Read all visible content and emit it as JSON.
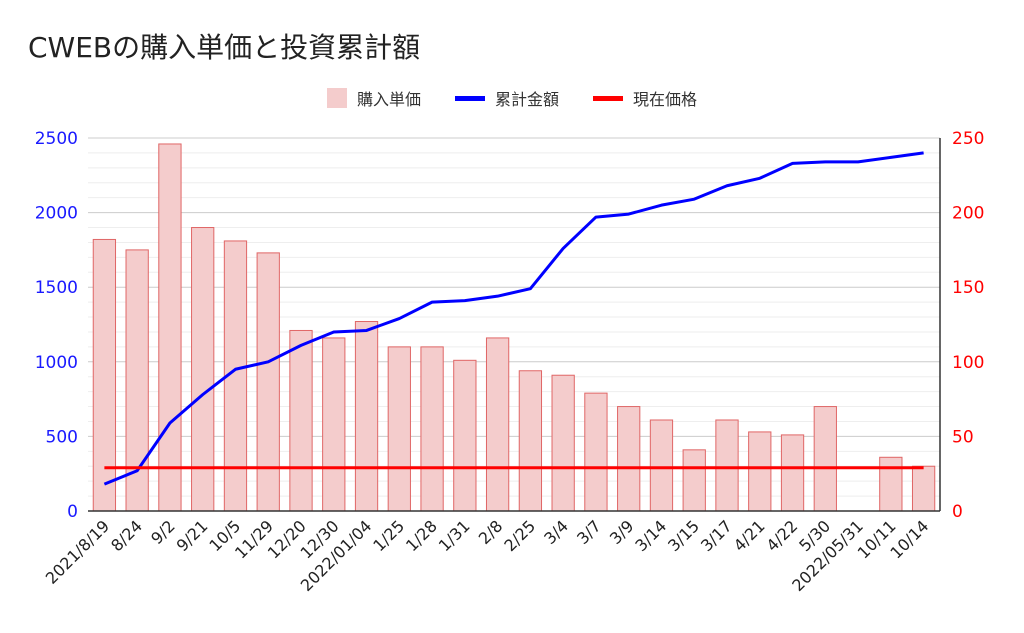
{
  "chart_data": {
    "type": "bar",
    "title": "CWEBの購入単価と投資累計額",
    "legend": [
      "購入単価",
      "累計金額",
      "現在価格"
    ],
    "categories": [
      "2021/8/19",
      "8/24",
      "9/2",
      "9/21",
      "10/5",
      "11/29",
      "12/20",
      "12/30",
      "2022/01/04",
      "1/25",
      "1/28",
      "1/31",
      "2/8",
      "2/25",
      "3/4",
      "3/7",
      "3/9",
      "3/14",
      "3/15",
      "3/17",
      "4/21",
      "4/22",
      "5/30",
      "2022/05/31",
      "10/11",
      "10/14"
    ],
    "series": [
      {
        "name": "購入単価",
        "type": "bar",
        "axis": "left",
        "color": "#f4cccc",
        "values": [
          1820,
          1750,
          2460,
          1900,
          1810,
          1730,
          1210,
          1160,
          1270,
          1100,
          1100,
          1010,
          1160,
          940,
          910,
          790,
          700,
          610,
          410,
          610,
          530,
          510,
          700,
          0,
          360,
          300
        ]
      },
      {
        "name": "累計金額",
        "type": "line",
        "axis": "right",
        "color": "#0000ff",
        "values": [
          18,
          27,
          59,
          78,
          95,
          100,
          111,
          120,
          121,
          129,
          140,
          141,
          144,
          149,
          176,
          197,
          199,
          205,
          209,
          218,
          223,
          233,
          234,
          234,
          237,
          240
        ]
      },
      {
        "name": "現在価格",
        "type": "line",
        "axis": "right",
        "color": "#ff0000",
        "values": [
          29,
          29,
          29,
          29,
          29,
          29,
          29,
          29,
          29,
          29,
          29,
          29,
          29,
          29,
          29,
          29,
          29,
          29,
          29,
          29,
          29,
          29,
          29,
          29,
          29,
          29
        ]
      }
    ],
    "y_left": {
      "range": [
        0,
        2500
      ],
      "ticks": [
        "0",
        "500",
        "1000",
        "1500",
        "2000",
        "2500"
      ],
      "color": "#1a1aff"
    },
    "y_right": {
      "range": [
        0,
        250
      ],
      "ticks": [
        "0",
        "50",
        "100",
        "150",
        "200",
        "250"
      ],
      "color": "#ff0000"
    },
    "grid": true,
    "legend_position": "top-center"
  }
}
